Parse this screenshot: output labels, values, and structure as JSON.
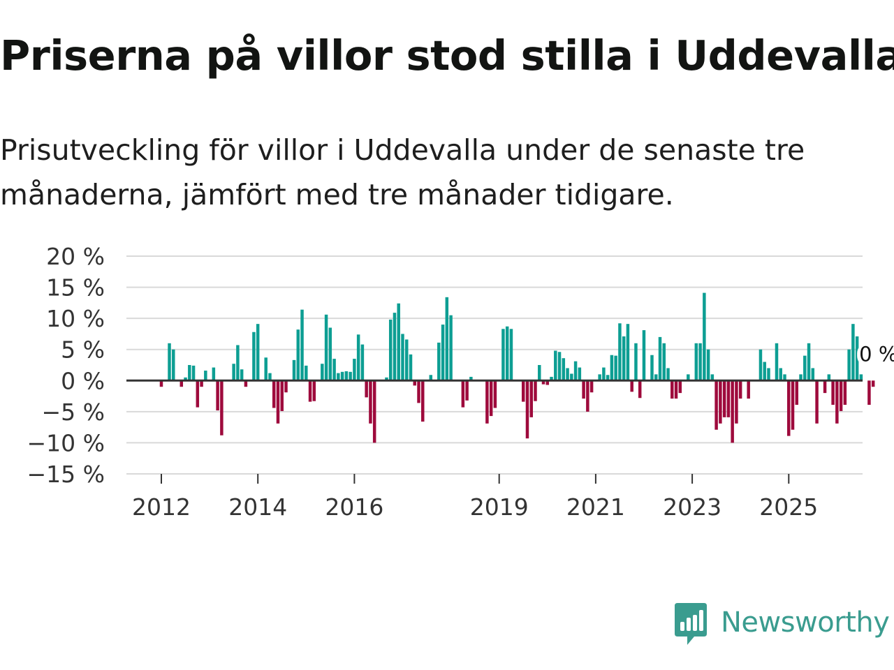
{
  "title": "Priserna på villor stod stilla i Uddevalla",
  "subtitle": "Prisutveckling för villor i Uddevalla under de senaste tre månaderna, jämfört med tre månader tidigare.",
  "brand": {
    "name": "Newsworthy",
    "color": "#3a9c8f"
  },
  "colors": {
    "positive": "#0d9e93",
    "negative": "#9e0a3c",
    "grid": "#d9d9d9",
    "zero_line": "#333333"
  },
  "chart_data": {
    "type": "bar",
    "title": "Priserna på villor stod stilla i Uddevalla",
    "xlabel": "",
    "ylabel": "",
    "ylim": [
      -15,
      20
    ],
    "yticks": [
      20,
      15,
      10,
      5,
      0,
      -5,
      -10,
      -15
    ],
    "ytick_labels": [
      "20 %",
      "15 %",
      "10 %",
      "5 %",
      "0 %",
      "−5 %",
      "−10 %",
      "−15 %"
    ],
    "xticks": [
      2012,
      2014,
      2016,
      2019,
      2021,
      2023,
      2025
    ],
    "xtick_labels": [
      "2012",
      "2014",
      "2016",
      "2019",
      "2021",
      "2023",
      "2025"
    ],
    "x_start": 2011.25,
    "x_end": 2026.5,
    "first_bar_x": 2012.0,
    "bar_step_years": 0.08333,
    "grid": true,
    "annotation": "0 %",
    "series": [
      {
        "name": "Prisutveckling",
        "values": [
          -1,
          0,
          6,
          5,
          0,
          -1,
          0.5,
          2.5,
          2.4,
          -4.3,
          -1,
          1.6,
          0,
          2.1,
          -4.8,
          -8.8,
          0,
          0,
          2.7,
          5.7,
          1.8,
          -1,
          0,
          7.8,
          9.1,
          0,
          3.7,
          1.2,
          -4.4,
          -6.9,
          -4.9,
          -1.9,
          0,
          3.3,
          8.2,
          11.4,
          2.4,
          -3.4,
          -3.3,
          0,
          2.7,
          10.6,
          8.5,
          3.5,
          1.2,
          1.4,
          1.5,
          1.4,
          3.5,
          7.4,
          5.8,
          -2.7,
          -6.9,
          -10,
          0,
          0,
          0.5,
          9.8,
          10.9,
          12.4,
          7.5,
          6.6,
          4.2,
          -0.8,
          -3.6,
          -6.6,
          0,
          0.9,
          0,
          6.1,
          9,
          13.4,
          10.5,
          0,
          0,
          -4.3,
          -3.2,
          0.6,
          0,
          0,
          0,
          -6.9,
          -5.7,
          -4.4,
          0,
          8.3,
          8.7,
          8.3,
          0,
          0,
          -3.4,
          -9.3,
          -5.9,
          -3.3,
          2.5,
          -0.6,
          -0.7,
          0.6,
          4.8,
          4.6,
          3.6,
          2,
          1.1,
          3.1,
          2.1,
          -2.9,
          -5,
          -1.9,
          0,
          1,
          2.1,
          0.9,
          4.1,
          4,
          9.2,
          7.1,
          9.1,
          -1.8,
          6,
          -2.8,
          8.1,
          0,
          4.1,
          1,
          7,
          6,
          2,
          -2.9,
          -2.9,
          -2,
          0,
          1,
          0,
          6,
          6,
          14.1,
          5,
          1,
          -7.9,
          -6.9,
          -5.9,
          -5.9,
          -10,
          -6.9,
          -2.9,
          0,
          -2.9,
          0,
          0,
          5,
          3,
          2,
          0,
          6,
          2,
          1,
          -8.9,
          -7.9,
          -3.9,
          1,
          4,
          6,
          2,
          -6.9,
          0,
          -2,
          1,
          -3.9,
          -6.9,
          -4.9,
          -3.9,
          5,
          9.1,
          7.1,
          1,
          0,
          -3.9,
          -1
        ]
      }
    ]
  }
}
